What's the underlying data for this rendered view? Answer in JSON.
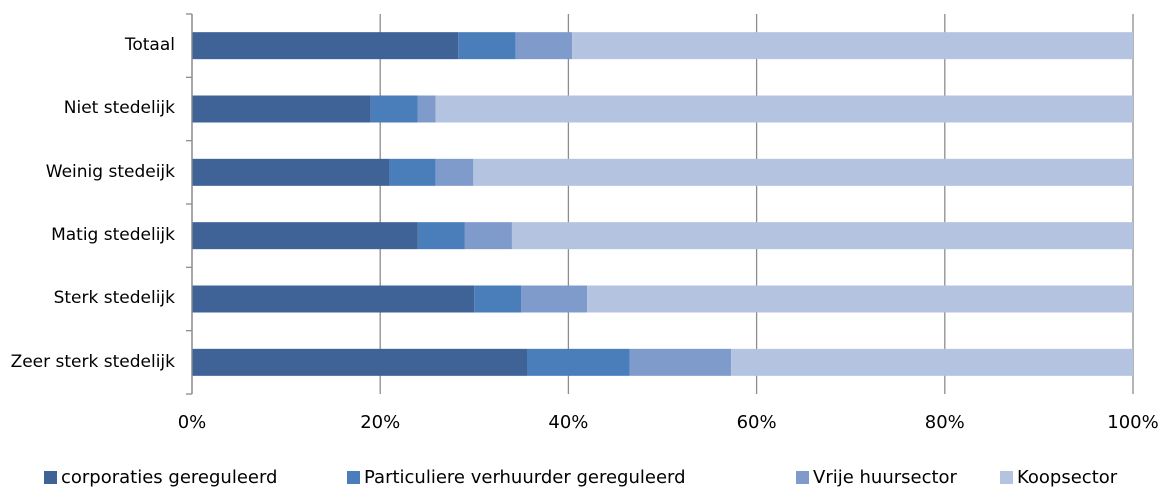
{
  "chart_data": {
    "type": "stacked-barh",
    "categories": [
      "Totaal",
      "Niet stedelijk",
      "Weinig stedeijk",
      "Matig stedelijk",
      "Sterk stedelijk",
      "Zeer sterk stedelijk"
    ],
    "series": [
      {
        "name": "corporaties gereguleerd",
        "color": "#3f6396",
        "values": [
          28.3,
          19.0,
          21.0,
          24.0,
          30.0,
          35.6
        ]
      },
      {
        "name": "Particuliere verhuurder gereguleerd",
        "color": "#4a7ebb",
        "values": [
          6.1,
          5.0,
          4.9,
          5.0,
          5.0,
          10.9
        ]
      },
      {
        "name": "Vrije huursector",
        "color": "#7f9bcb",
        "values": [
          6.0,
          1.9,
          4.0,
          5.0,
          7.0,
          10.8
        ]
      },
      {
        "name": "Koopsector",
        "color": "#b4c3e0",
        "values": [
          59.6,
          74.1,
          70.1,
          66.0,
          58.0,
          42.7
        ]
      }
    ],
    "xlim": [
      0,
      100
    ],
    "xticks": [
      {
        "value": 0,
        "label": "0%"
      },
      {
        "value": 20,
        "label": "20%"
      },
      {
        "value": 40,
        "label": "40%"
      },
      {
        "value": 60,
        "label": "60%"
      },
      {
        "value": 80,
        "label": "80%"
      },
      {
        "value": 100,
        "label": "100%"
      }
    ],
    "grid": true
  }
}
